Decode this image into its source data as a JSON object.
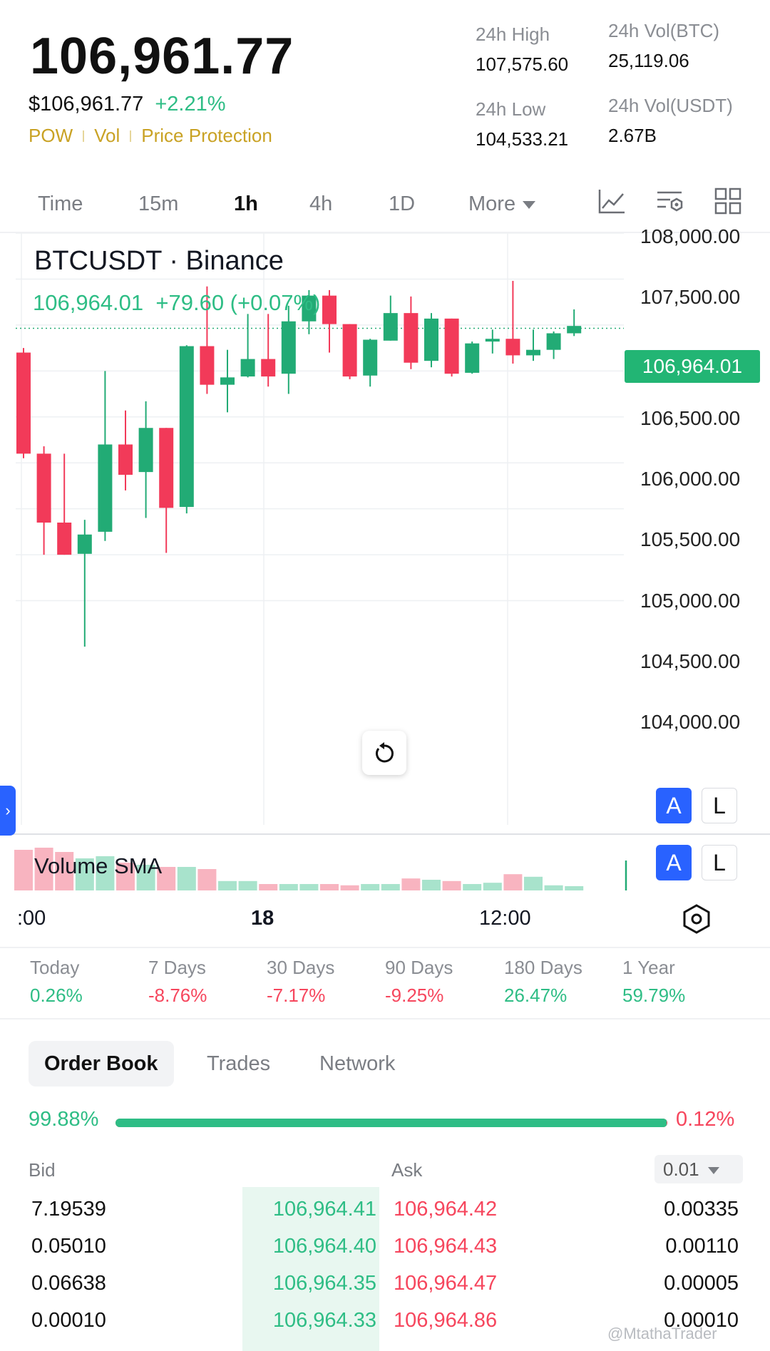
{
  "header": {
    "price": "106,961.77",
    "usd_price": "$106,961.77",
    "change_pct": "+2.21%",
    "tags": [
      "POW",
      "Vol",
      "Price Protection"
    ],
    "stats": {
      "high_label": "24h High",
      "high_value": "107,575.60",
      "low_label": "24h Low",
      "low_value": "104,533.21",
      "vol_btc_label": "24h Vol(BTC)",
      "vol_btc_value": "25,119.06",
      "vol_usdt_label": "24h Vol(USDT)",
      "vol_usdt_value": "2.67B"
    }
  },
  "timeframes": {
    "items": [
      "Time",
      "15m",
      "1h",
      "4h",
      "1D",
      "More"
    ],
    "active": "1h",
    "tools": [
      "indicator-chart-icon",
      "chart-settings-icon",
      "grid-layout-icon"
    ]
  },
  "chart": {
    "title": "BTCUSDT · Binance",
    "info_price": "106,964.01",
    "info_change": "+79.60 (+0.07%)",
    "y_ticks": [
      "108,000.00",
      "107,500.00",
      "106,500.00",
      "106,000.00",
      "105,500.00",
      "105,000.00",
      "104,500.00",
      "104,000.00"
    ],
    "price_tag": "106,964.01",
    "volume_label": "Volume SMA",
    "x_ticks": [
      ":00",
      "18",
      "12:00"
    ],
    "scale_buttons": {
      "auto": "A",
      "log": "L"
    },
    "colors": {
      "up": "#22AB75",
      "down": "#F23A59",
      "grid": "#eef0f3",
      "price_line": "#22AB75",
      "accent": "#2962FF"
    },
    "icons": [
      "reset-icon",
      "settings-hex-icon",
      "expand-chevron-icon"
    ]
  },
  "chart_data": {
    "type": "candlestick",
    "symbol": "BTCUSDT",
    "exchange": "Binance",
    "interval": "1h",
    "ylim": [
      103500,
      108000
    ],
    "candles": [
      {
        "o": 106700,
        "h": 106750,
        "l": 105550,
        "c": 105600
      },
      {
        "o": 105600,
        "h": 105680,
        "l": 104500,
        "c": 104850
      },
      {
        "o": 104850,
        "h": 105600,
        "l": 104500,
        "c": 104500
      },
      {
        "o": 104510,
        "h": 104880,
        "l": 103500,
        "c": 104720
      },
      {
        "o": 104750,
        "h": 106500,
        "l": 104650,
        "c": 105700
      },
      {
        "o": 105700,
        "h": 106070,
        "l": 105200,
        "c": 105370
      },
      {
        "o": 105400,
        "h": 106170,
        "l": 104900,
        "c": 105880
      },
      {
        "o": 105880,
        "h": 105880,
        "l": 104520,
        "c": 105010
      },
      {
        "o": 105020,
        "h": 106780,
        "l": 104950,
        "c": 106770
      },
      {
        "o": 106770,
        "h": 107420,
        "l": 106250,
        "c": 106350
      },
      {
        "o": 106350,
        "h": 106730,
        "l": 106050,
        "c": 106430
      },
      {
        "o": 106440,
        "h": 107120,
        "l": 106430,
        "c": 106630
      },
      {
        "o": 106630,
        "h": 107120,
        "l": 106330,
        "c": 106440
      },
      {
        "o": 106470,
        "h": 107210,
        "l": 106250,
        "c": 107040
      },
      {
        "o": 107040,
        "h": 107380,
        "l": 106900,
        "c": 107320
      },
      {
        "o": 107320,
        "h": 107380,
        "l": 106700,
        "c": 107010
      },
      {
        "o": 107010,
        "h": 107010,
        "l": 106410,
        "c": 106440
      },
      {
        "o": 106450,
        "h": 106850,
        "l": 106330,
        "c": 106840
      },
      {
        "o": 106830,
        "h": 107320,
        "l": 106830,
        "c": 107130
      },
      {
        "o": 107130,
        "h": 107310,
        "l": 106520,
        "c": 106590
      },
      {
        "o": 106610,
        "h": 107130,
        "l": 106540,
        "c": 107070
      },
      {
        "o": 107070,
        "h": 107070,
        "l": 106440,
        "c": 106470
      },
      {
        "o": 106480,
        "h": 106820,
        "l": 106470,
        "c": 106800
      },
      {
        "o": 106820,
        "h": 106950,
        "l": 106690,
        "c": 106850
      },
      {
        "o": 106850,
        "h": 107480,
        "l": 106580,
        "c": 106670
      },
      {
        "o": 106670,
        "h": 106950,
        "l": 106610,
        "c": 106730
      },
      {
        "o": 106730,
        "h": 106930,
        "l": 106630,
        "c": 106910
      },
      {
        "o": 106910,
        "h": 107170,
        "l": 106880,
        "c": 106990
      }
    ],
    "volume_note": "Volume bars follow candle colors; relative heights 0-1",
    "volume": [
      0.95,
      1.0,
      0.9,
      0.75,
      0.8,
      0.65,
      0.6,
      0.55,
      0.55,
      0.5,
      0.22,
      0.22,
      0.15,
      0.15,
      0.15,
      0.15,
      0.12,
      0.15,
      0.15,
      0.28,
      0.25,
      0.22,
      0.15,
      0.18,
      0.38,
      0.32,
      0.12,
      0.1
    ]
  },
  "performance": [
    {
      "label": "Today",
      "value": "0.26%",
      "dir": "up"
    },
    {
      "label": "7 Days",
      "value": "-8.76%",
      "dir": "down"
    },
    {
      "label": "30 Days",
      "value": "-7.17%",
      "dir": "down"
    },
    {
      "label": "90 Days",
      "value": "-9.25%",
      "dir": "down"
    },
    {
      "label": "180 Days",
      "value": "26.47%",
      "dir": "up"
    },
    {
      "label": "1 Year",
      "value": "59.79%",
      "dir": "up"
    }
  ],
  "orderbook": {
    "tabs": [
      "Order Book",
      "Trades",
      "Network"
    ],
    "bid_ratio": "99.88%",
    "ask_ratio": "0.12%",
    "bid_fraction": 0.9988,
    "bid_header": "Bid",
    "ask_header": "Ask",
    "precision": "0.01",
    "rows": [
      {
        "bid_qty": "7.19539",
        "bid_price": "106,964.41",
        "ask_price": "106,964.42",
        "ask_qty": "0.00335"
      },
      {
        "bid_qty": "0.05010",
        "bid_price": "106,964.40",
        "ask_price": "106,964.43",
        "ask_qty": "0.00110"
      },
      {
        "bid_qty": "0.06638",
        "bid_price": "106,964.35",
        "ask_price": "106,964.47",
        "ask_qty": "0.00005"
      },
      {
        "bid_qty": "0.00010",
        "bid_price": "106,964.33",
        "ask_price": "106,964.86",
        "ask_qty": "0.00010"
      }
    ]
  },
  "watermark": "@MtathaTrader"
}
